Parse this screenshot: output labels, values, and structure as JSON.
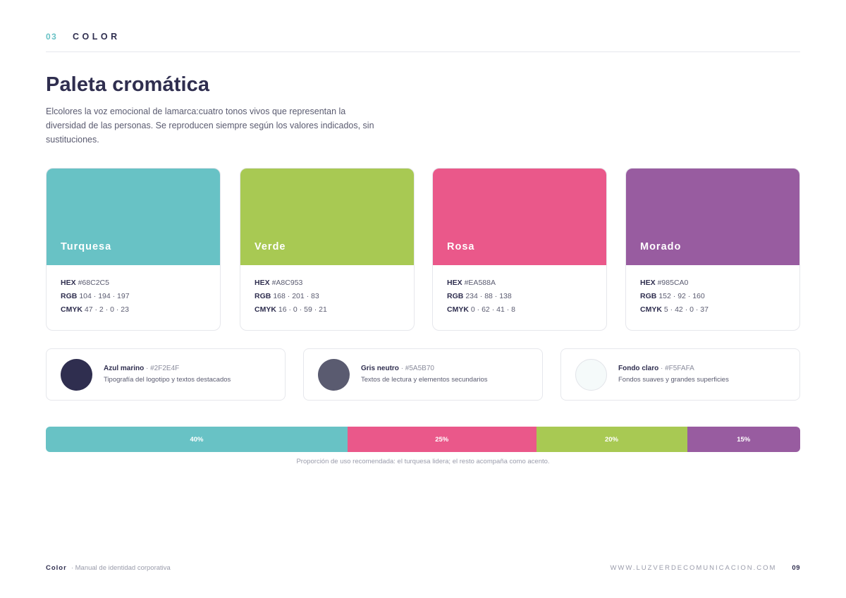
{
  "header": {
    "section_number": "03",
    "section_title": "COLOR"
  },
  "title": "Paleta cromática",
  "intro": "Elcolores la voz emocional de lamarca:cuatro tonos vivos que representan la diversidad de las personas. Se reproducen siempre según los valores indicados, sin sustituciones.",
  "primary_colors": [
    {
      "name": "Turquesa",
      "color": "#68C2C5",
      "hex_label": "HEX",
      "hex": "#68C2C5",
      "rgb_label": "RGB",
      "rgb": "104 · 194 · 197",
      "cmyk_label": "CMYK",
      "cmyk": "47 · 2 · 0 · 23"
    },
    {
      "name": "Verde",
      "color": "#A8C953",
      "hex_label": "HEX",
      "hex": "#A8C953",
      "rgb_label": "RGB",
      "rgb": "168 · 201 · 83",
      "cmyk_label": "CMYK",
      "cmyk": "16 · 0 · 59 · 21"
    },
    {
      "name": "Rosa",
      "color": "#EA588A",
      "hex_label": "HEX",
      "hex": "#EA588A",
      "rgb_label": "RGB",
      "rgb": "234 · 88 · 138",
      "cmyk_label": "CMYK",
      "cmyk": "0 · 62 · 41 · 8"
    },
    {
      "name": "Morado",
      "color": "#985CA0",
      "hex_label": "HEX",
      "hex": "#985CA0",
      "rgb_label": "RGB",
      "rgb": "152 · 92 · 160",
      "cmyk_label": "CMYK",
      "cmyk": "5 · 42 · 0 · 37"
    }
  ],
  "neutral_colors": [
    {
      "name": "Azul marino",
      "hex_text": "· #2F2E4F",
      "color": "#2F2E4F",
      "description": "Tipografía del logotipo y textos destacados"
    },
    {
      "name": "Gris neutro",
      "hex_text": "· #5A5B70",
      "color": "#5A5B70",
      "description": "Textos de lectura y elementos secundarios"
    },
    {
      "name": "Fondo claro",
      "hex_text": "· #F5FAFA",
      "color": "#F5FAFA",
      "description": "Fondos suaves y grandes superficies"
    }
  ],
  "usage_bar": {
    "segments": [
      {
        "label": "40%",
        "share": 40,
        "color": "#68C2C5"
      },
      {
        "label": "25%",
        "share": 25,
        "color": "#EA588A"
      },
      {
        "label": "20%",
        "share": 20,
        "color": "#A8C953"
      },
      {
        "label": "15%",
        "share": 15,
        "color": "#985CA0"
      }
    ],
    "caption": "Proporción de uso recomendada: el turquesa lidera; el resto acompaña como acento."
  },
  "footer": {
    "section": "Color",
    "subtitle": "· Manual de identidad corporativa",
    "website": "WWW.LUZVERDECOMUNICACION.COM",
    "page": "09"
  }
}
